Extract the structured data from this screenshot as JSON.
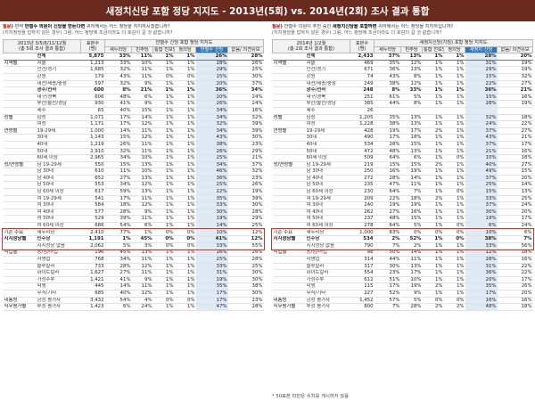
{
  "title": "새정치신당 포함 정당 지지도 - 2013년(5회) vs. 2014년(2회) 조사 결과 통합",
  "footnote": "* 50표본 미만은 수치를 게시하지 않음",
  "left": {
    "question": {
      "label": "질문)",
      "line1a": "만약 ",
      "highlight": "안철수 의원이 신당을 만든다면",
      "line1b": " 귀하께서는 어느 정당을 지지하시겠습니까?",
      "line2": "(지지정당을 답하지 않은 경우) 그럼, 어느 정당에 조금이라도 더 호감이 갈 것 같습니까?"
    },
    "header": {
      "period": "2013년 3/5/6/11/12월",
      "period2": "(총 5회 조사 결과 통합)",
      "sample": "표본수",
      "sample2": "(명)",
      "group": "안철수 신당 포함 정당 지지도",
      "cols": [
        "새누리당",
        "민주당",
        "통합 진보당",
        "정의당",
        "안철수 신당",
        "없음/ 의견유보"
      ]
    },
    "rows": [
      {
        "cat": "",
        "sub": "전체",
        "n": "5,875",
        "v": [
          "33%",
          "11%",
          "1%",
          "1%",
          "26%",
          "28%"
        ],
        "type": "total"
      },
      {
        "cat": "지역별",
        "sub": "서울",
        "n": "1,213",
        "v": [
          "33%",
          "10%",
          "1%",
          "1%",
          "28%",
          "26%"
        ]
      },
      {
        "cat": "",
        "sub": "인천/경기",
        "n": "1,685",
        "v": [
          "32%",
          "11%",
          "1%",
          "1%",
          "29%",
          "25%"
        ]
      },
      {
        "cat": "",
        "sub": "강원",
        "n": "179",
        "v": [
          "43%",
          "11%",
          "0%",
          "0%",
          "15%",
          "30%"
        ]
      },
      {
        "cat": "",
        "sub": "대전/세종/충청",
        "n": "597",
        "v": [
          "32%",
          "9%",
          "1%",
          "1%",
          "20%",
          "37%"
        ]
      },
      {
        "cat": "",
        "sub": "광주/전라",
        "n": "600",
        "v": [
          "8%",
          "21%",
          "1%",
          "1%",
          "36%",
          "34%"
        ],
        "type": "bold"
      },
      {
        "cat": "",
        "sub": "대구/경북",
        "n": "606",
        "v": [
          "48%",
          "6%",
          "1%",
          "1%",
          "20%",
          "24%"
        ]
      },
      {
        "cat": "",
        "sub": "부산/울산/경남",
        "n": "930",
        "v": [
          "41%",
          "9%",
          "1%",
          "1%",
          "26%",
          "24%"
        ]
      },
      {
        "cat": "",
        "sub": "제주",
        "n": "65",
        "v": [
          "40%",
          "15%",
          "1%",
          "1%",
          "34%",
          "16%"
        ]
      },
      {
        "cat": "성별",
        "sub": "남성",
        "n": "1,071",
        "v": [
          "17%",
          "14%",
          "1%",
          "1%",
          "34%",
          "32%"
        ],
        "type": "grp"
      },
      {
        "cat": "",
        "sub": "여성",
        "n": "1,171",
        "v": [
          "17%",
          "12%",
          "1%",
          "1%",
          "32%",
          "39%"
        ]
      },
      {
        "cat": "연령별",
        "sub": "19-29세",
        "n": "1,000",
        "v": [
          "14%",
          "11%",
          "1%",
          "1%",
          "34%",
          "39%"
        ],
        "type": "grp"
      },
      {
        "cat": "",
        "sub": "30대",
        "n": "1,143",
        "v": [
          "15%",
          "12%",
          "1%",
          "1%",
          "43%",
          "30%"
        ]
      },
      {
        "cat": "",
        "sub": "40대",
        "n": "1,219",
        "v": [
          "26%",
          "11%",
          "1%",
          "1%",
          "38%",
          "23%"
        ]
      },
      {
        "cat": "",
        "sub": "50대",
        "n": "2,910",
        "v": [
          "32%",
          "11%",
          "1%",
          "1%",
          "26%",
          "29%"
        ]
      },
      {
        "cat": "",
        "sub": "60세 이상",
        "n": "2,965",
        "v": [
          "34%",
          "10%",
          "1%",
          "1%",
          "25%",
          "21%"
        ]
      },
      {
        "cat": "성/연령별",
        "sub": "남 19-29세",
        "n": "550",
        "v": [
          "15%",
          "13%",
          "1%",
          "1%",
          "34%",
          "37%"
        ],
        "type": "grp"
      },
      {
        "cat": "",
        "sub": "남 30대",
        "n": "610",
        "v": [
          "11%",
          "10%",
          "1%",
          "1%",
          "46%",
          "32%"
        ]
      },
      {
        "cat": "",
        "sub": "남 40대",
        "n": "652",
        "v": [
          "27%",
          "13%",
          "1%",
          "1%",
          "36%",
          "23%"
        ]
      },
      {
        "cat": "",
        "sub": "남 50대",
        "n": "553",
        "v": [
          "34%",
          "12%",
          "1%",
          "1%",
          "25%",
          "26%"
        ]
      },
      {
        "cat": "",
        "sub": "남 60세 이상",
        "n": "617",
        "v": [
          "59%",
          "13%",
          "1%",
          "1%",
          "22%",
          "19%"
        ]
      },
      {
        "cat": "",
        "sub": "여 19-29세",
        "n": "541",
        "v": [
          "17%",
          "11%",
          "1%",
          "1%",
          "35%",
          "39%"
        ]
      },
      {
        "cat": "",
        "sub": "여 30대",
        "n": "584",
        "v": [
          "18%",
          "12%",
          "1%",
          "1%",
          "33%",
          "30%"
        ]
      },
      {
        "cat": "",
        "sub": "여 40대",
        "n": "577",
        "v": [
          "28%",
          "9%",
          "1%",
          "1%",
          "30%",
          "28%"
        ]
      },
      {
        "cat": "",
        "sub": "여 50대",
        "n": "529",
        "v": [
          "39%",
          "11%",
          "1%",
          "1%",
          "19%",
          "29%"
        ]
      },
      {
        "cat": "",
        "sub": "여 60세 이상",
        "n": "686",
        "v": [
          "54%",
          "6%",
          "1%",
          "1%",
          "14%",
          "25%"
        ]
      },
      {
        "cat": "기존 주요",
        "sub": "새누리당",
        "n": "2,410",
        "v": [
          "77%",
          "1%",
          "0%",
          "0%",
          "10%",
          "12%"
        ],
        "type": "grp"
      },
      {
        "cat": "지지정당별",
        "sub": "민주당",
        "n": "1,191",
        "v": [
          "1%",
          "45%",
          "0%",
          "0%",
          "41%",
          "12%"
        ],
        "type": "bold"
      },
      {
        "cat": "",
        "sub": "지지정당 없음",
        "n": "2,062",
        "v": [
          "5%",
          "3%",
          "0%",
          "0%",
          "33%",
          "55%"
        ]
      },
      {
        "cat": "직업별",
        "sub": "농/임/어업",
        "n": "196",
        "v": [
          "45%",
          "13%",
          "1%",
          "1%",
          "16%",
          "26%"
        ],
        "type": "grp"
      },
      {
        "cat": "",
        "sub": "자영업",
        "n": "768",
        "v": [
          "34%",
          "11%",
          "1%",
          "1%",
          "25%",
          "28%"
        ]
      },
      {
        "cat": "",
        "sub": "블루칼라",
        "n": "733",
        "v": [
          "28%",
          "12%",
          "1%",
          "1%",
          "33%",
          "25%"
        ]
      },
      {
        "cat": "",
        "sub": "화이트칼라",
        "n": "1,627",
        "v": [
          "27%",
          "11%",
          "1%",
          "1%",
          "31%",
          "30%"
        ]
      },
      {
        "cat": "",
        "sub": "가정주부",
        "n": "1,421",
        "v": [
          "41%",
          "9%",
          "1%",
          "1%",
          "19%",
          "30%"
        ]
      },
      {
        "cat": "",
        "sub": "학생",
        "n": "445",
        "v": [
          "14%",
          "11%",
          "1%",
          "1%",
          "35%",
          "38%"
        ]
      },
      {
        "cat": "",
        "sub": "무직/기타",
        "n": "685",
        "v": [
          "40%",
          "12%",
          "1%",
          "1%",
          "17%",
          "30%"
        ]
      },
      {
        "cat": "대통령",
        "sub": "긍정 평가자",
        "n": "3,432",
        "v": [
          "54%",
          "4%",
          "0%",
          "0%",
          "17%",
          "23%"
        ],
        "type": "grp"
      },
      {
        "cat": "직무평가별",
        "sub": "부정 평가자",
        "n": "1,423",
        "v": [
          "6%",
          "24%",
          "1%",
          "1%",
          "47%",
          "28%"
        ]
      }
    ]
  },
  "right": {
    "question": {
      "label": "질문)",
      "line1a": "안철수 의원이 추진 중인 ",
      "highlight": "새정치신당을 포함하면",
      "line1b": " 귀하께서는 어느 정당을 지지하십니까?",
      "line2": "(지지정당을 답하지 않은 경우) 그럼, 어느 정당에 조금이라도 더 호감이 갈 것 같습니까?"
    },
    "header": {
      "period": "2014년 1/2월",
      "period2": "(총 2회 조사 결과 통합)",
      "sample": "표본수",
      "sample2": "(명)",
      "group": "새정치신당(가칭) 포함 정당 지지도",
      "cols": [
        "새누리당",
        "민주당",
        "통합 진보당",
        "정의당",
        "새정치 신당",
        "없음/ 의견유보"
      ]
    },
    "rows": [
      {
        "cat": "",
        "sub": "전체",
        "n": "2,433",
        "v": [
          "37%",
          "13%",
          "1%",
          "1%",
          "28%",
          "20%"
        ],
        "type": "total"
      },
      {
        "cat": "지역별",
        "sub": "서울",
        "n": "469",
        "v": [
          "35%",
          "12%",
          "1%",
          "1%",
          "31%",
          "19%"
        ]
      },
      {
        "cat": "",
        "sub": "인천/경기",
        "n": "671",
        "v": [
          "36%",
          "13%",
          "1%",
          "1%",
          "29%",
          "19%"
        ]
      },
      {
        "cat": "",
        "sub": "강원",
        "n": "74",
        "v": [
          "43%",
          "8%",
          "1%",
          "1%",
          "15%",
          "32%"
        ]
      },
      {
        "cat": "",
        "sub": "대전/세종/충청",
        "n": "249",
        "v": [
          "38%",
          "12%",
          "1%",
          "1%",
          "22%",
          "27%"
        ]
      },
      {
        "cat": "",
        "sub": "광주/전라",
        "n": "248",
        "v": [
          "8%",
          "33%",
          "1%",
          "1%",
          "36%",
          "21%"
        ],
        "type": "bold"
      },
      {
        "cat": "",
        "sub": "대구/경북",
        "n": "251",
        "v": [
          "61%",
          "5%",
          "1%",
          "1%",
          "15%",
          "16%"
        ]
      },
      {
        "cat": "",
        "sub": "부산/울산/경남",
        "n": "385",
        "v": [
          "44%",
          "8%",
          "1%",
          "1%",
          "28%",
          "19%"
        ]
      },
      {
        "cat": "",
        "sub": "제주",
        "n": "26",
        "v": [
          "",
          "",
          "",
          "",
          "",
          ""
        ]
      },
      {
        "cat": "성별",
        "sub": "남성",
        "n": "1,205",
        "v": [
          "35%",
          "13%",
          "1%",
          "1%",
          "32%",
          "18%"
        ],
        "type": "grp"
      },
      {
        "cat": "",
        "sub": "여성",
        "n": "1,228",
        "v": [
          "38%",
          "13%",
          "1%",
          "1%",
          "24%",
          "22%"
        ]
      },
      {
        "cat": "연령별",
        "sub": "19-29세",
        "n": "428",
        "v": [
          "19%",
          "17%",
          "2%",
          "1%",
          "37%",
          "27%"
        ],
        "type": "grp"
      },
      {
        "cat": "",
        "sub": "30대",
        "n": "490",
        "v": [
          "17%",
          "18%",
          "1%",
          "1%",
          "43%",
          "21%"
        ]
      },
      {
        "cat": "",
        "sub": "40대",
        "n": "534",
        "v": [
          "28%",
          "15%",
          "1%",
          "1%",
          "37%",
          "17%"
        ]
      },
      {
        "cat": "",
        "sub": "50대",
        "n": "472",
        "v": [
          "48%",
          "13%",
          "1%",
          "1%",
          "21%",
          "16%"
        ]
      },
      {
        "cat": "",
        "sub": "60세 이상",
        "n": "509",
        "v": [
          "64%",
          "6%",
          "1%",
          "0%",
          "10%",
          "18%"
        ]
      },
      {
        "cat": "성/연령별",
        "sub": "남 19-29세",
        "n": "219",
        "v": [
          "15%",
          "15%",
          "2%",
          "1%",
          "40%",
          "27%"
        ],
        "type": "grp"
      },
      {
        "cat": "",
        "sub": "남 30대",
        "n": "250",
        "v": [
          "16%",
          "19%",
          "1%",
          "1%",
          "49%",
          "15%"
        ]
      },
      {
        "cat": "",
        "sub": "남 40대",
        "n": "272",
        "v": [
          "28%",
          "14%",
          "1%",
          "1%",
          "37%",
          "20%"
        ]
      },
      {
        "cat": "",
        "sub": "남 50대",
        "n": "235",
        "v": [
          "47%",
          "11%",
          "1%",
          "1%",
          "25%",
          "14%"
        ]
      },
      {
        "cat": "",
        "sub": "남 60세 이상",
        "n": "230",
        "v": [
          "64%",
          "7%",
          "1%",
          "0%",
          "15%",
          "13%"
        ]
      },
      {
        "cat": "",
        "sub": "여 19-29세",
        "n": "209",
        "v": [
          "22%",
          "18%",
          "2%",
          "1%",
          "33%",
          "25%"
        ]
      },
      {
        "cat": "",
        "sub": "여 30대",
        "n": "240",
        "v": [
          "19%",
          "19%",
          "1%",
          "1%",
          "37%",
          "24%"
        ]
      },
      {
        "cat": "",
        "sub": "여 40대",
        "n": "262",
        "v": [
          "27%",
          "16%",
          "1%",
          "1%",
          "30%",
          "20%"
        ]
      },
      {
        "cat": "",
        "sub": "여 50대",
        "n": "237",
        "v": [
          "48%",
          "15%",
          "1%",
          "1%",
          "19%",
          "17%"
        ]
      },
      {
        "cat": "",
        "sub": "여 60세 이상",
        "n": "278",
        "v": [
          "64%",
          "5%",
          "1%",
          "0%",
          "6%",
          "24%"
        ]
      },
      {
        "cat": "기존 주요",
        "sub": "새누리당",
        "n": "1,000",
        "v": [
          "83%",
          "0%",
          "0%",
          "0%",
          "10%",
          "6%"
        ],
        "type": "grp"
      },
      {
        "cat": "지지정당별",
        "sub": "민주당",
        "n": "534",
        "v": [
          "2%",
          "52%",
          "1%",
          "0%",
          "38%",
          "7%"
        ],
        "type": "bold"
      },
      {
        "cat": "",
        "sub": "지지정당 없음",
        "n": "790",
        "v": [
          "7%",
          "2%",
          "1%",
          "1%",
          "33%",
          "56%"
        ]
      },
      {
        "cat": "직업별",
        "sub": "농/임/어업",
        "n": "98",
        "v": [
          "50%",
          "14%",
          "1%",
          "1%",
          "12%",
          "18%"
        ],
        "type": "grp"
      },
      {
        "cat": "",
        "sub": "자영업",
        "n": "314",
        "v": [
          "44%",
          "11%",
          "1%",
          "1%",
          "28%",
          "16%"
        ]
      },
      {
        "cat": "",
        "sub": "블루칼라",
        "n": "317",
        "v": [
          "30%",
          "13%",
          "1%",
          "1%",
          "31%",
          "22%"
        ]
      },
      {
        "cat": "",
        "sub": "화이트칼라",
        "n": "554",
        "v": [
          "23%",
          "17%",
          "1%",
          "1%",
          "36%",
          "22%"
        ]
      },
      {
        "cat": "",
        "sub": "가정주부",
        "n": "612",
        "v": [
          "51%",
          "10%",
          "1%",
          "1%",
          "20%",
          "17%"
        ]
      },
      {
        "cat": "",
        "sub": "학생",
        "n": "115",
        "v": [
          "17%",
          "19%",
          "2%",
          "1%",
          "35%",
          "26%"
        ]
      },
      {
        "cat": "",
        "sub": "무직/기타",
        "n": "227",
        "v": [
          "52%",
          "9%",
          "1%",
          "1%",
          "17%",
          "20%"
        ]
      },
      {
        "cat": "대통령",
        "sub": "긍정 평가자",
        "n": "1,452",
        "v": [
          "57%",
          "5%",
          "0%",
          "0%",
          "16%",
          "16%"
        ],
        "type": "grp"
      },
      {
        "cat": "직무평가별",
        "sub": "부정 평가자",
        "n": "800",
        "v": [
          "7%",
          "28%",
          "2%",
          "2%",
          "48%",
          "18%"
        ]
      }
    ]
  },
  "colors": {
    "title_bg": "#6b2a1e",
    "highlight_col": "#2c78bd",
    "box": "#c0392b"
  }
}
